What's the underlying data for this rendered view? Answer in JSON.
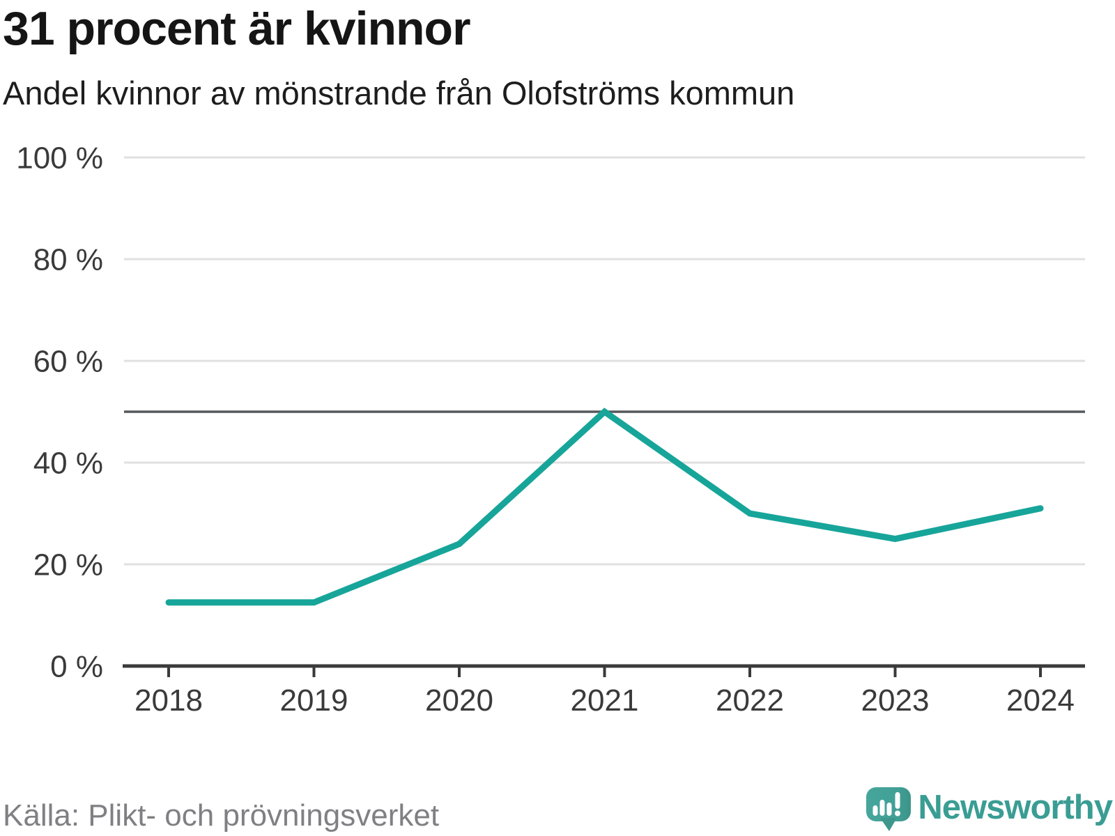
{
  "header": {
    "title": "31 procent är kvinnor",
    "subtitle": "Andel kvinnor av mönstrande från Olofströms kommun"
  },
  "footer": {
    "source": "Källa: Plikt- och prövningsverket",
    "brand": "Newsworthy"
  },
  "colors": {
    "line": "#17a59a",
    "grid": "#e0e0e0",
    "refline": "#55595b",
    "axis": "#3a3a3a",
    "label": "#3a3a3a",
    "brand_teal": "#3a9d94",
    "icon_teal_light": "#46a69b",
    "icon_teal_dark": "#3b9389"
  },
  "chart_data": {
    "type": "line",
    "title": "31 procent är kvinnor",
    "subtitle": "Andel kvinnor av mönstrande från Olofströms kommun",
    "x": [
      2018,
      2019,
      2020,
      2021,
      2022,
      2023,
      2024
    ],
    "xtick_labels": [
      "2018",
      "2019",
      "2020",
      "2021",
      "2022",
      "2023",
      "2024"
    ],
    "series": [
      {
        "name": "Andel kvinnor av mönstrande",
        "values": [
          12.5,
          12.5,
          24,
          50,
          30,
          25,
          31
        ]
      }
    ],
    "xlabel": "",
    "ylabel": "",
    "ylim": [
      0,
      100
    ],
    "yticks": [
      0,
      20,
      40,
      60,
      80,
      100
    ],
    "ytick_labels": [
      "0 %",
      "20 %",
      "40 %",
      "60 %",
      "80 %",
      "100 %"
    ],
    "refline": 50,
    "grid": "horizontal",
    "legend": "none"
  }
}
